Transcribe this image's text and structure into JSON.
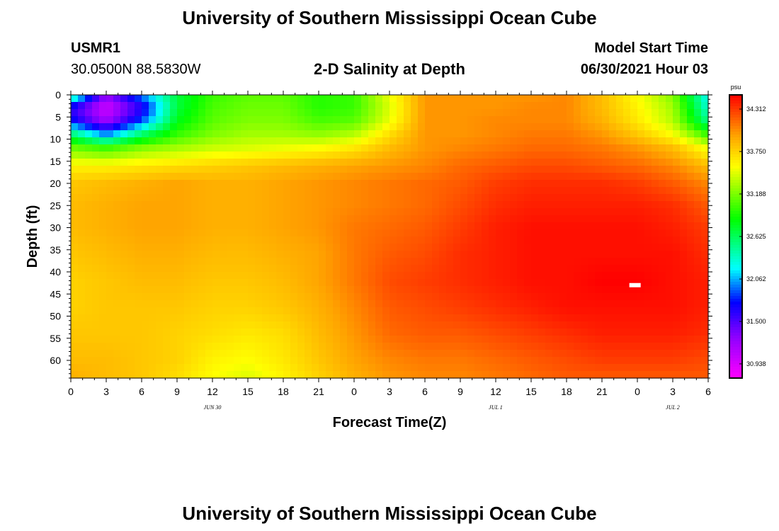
{
  "page": {
    "title_top": "University of Southern Mississippi Ocean Cube",
    "title_bottom": "University of Southern Mississippi Ocean Cube",
    "station_id": "USMR1",
    "station_coords": "30.0500N  88.5830W",
    "plot_title": "2-D Salinity at Depth",
    "model_start_label": "Model Start Time",
    "model_start_value": "06/30/2021 Hour 03"
  },
  "chart_data": {
    "type": "heatmap",
    "title": "2-D Salinity at Depth",
    "xlabel": "Forecast Time(Z)",
    "ylabel": "Depth (ft)",
    "x_tick_labels": [
      "0",
      "3",
      "6",
      "9",
      "12",
      "15",
      "18",
      "21",
      "0",
      "3",
      "6",
      "9",
      "12",
      "15",
      "18",
      "21",
      "0",
      "3",
      "6"
    ],
    "x_hours_range": [
      0,
      54
    ],
    "date_labels": [
      {
        "label": "JUN 30",
        "hour": 12
      },
      {
        "label": "JUL 1",
        "hour": 36
      },
      {
        "label": "JUL 2",
        "hour": 51
      }
    ],
    "y_ticks": [
      0,
      5,
      10,
      15,
      20,
      25,
      30,
      35,
      40,
      45,
      50,
      55,
      60
    ],
    "ylim": [
      0,
      64
    ],
    "units": "psu",
    "colorbar": {
      "label": "psu",
      "ticks": [
        30.938,
        31.5,
        32.062,
        32.625,
        33.188,
        33.75,
        34.312
      ],
      "range": [
        30.75,
        34.5
      ]
    },
    "salinity_grid_note": "rows = depth samples (ft), columns = forecast hour samples",
    "grid_hours": [
      0,
      3,
      6,
      9,
      12,
      15,
      18,
      21,
      24,
      27,
      30,
      33,
      36,
      39,
      42,
      45,
      48,
      51,
      54
    ],
    "grid_depths": [
      0,
      3,
      6,
      9,
      12,
      16,
      20,
      25,
      30,
      36,
      42,
      48,
      54,
      60,
      64
    ],
    "salinity": [
      [
        32.6,
        31.3,
        32.0,
        32.7,
        33.0,
        33.1,
        33.1,
        32.95,
        33.0,
        33.5,
        34.0,
        34.0,
        34.0,
        34.0,
        34.05,
        33.85,
        33.55,
        33.2,
        32.2
      ],
      [
        31.6,
        30.95,
        31.6,
        32.7,
        33.05,
        33.15,
        33.15,
        32.95,
        33.0,
        33.45,
        34.0,
        34.0,
        34.0,
        34.05,
        34.05,
        33.85,
        33.6,
        33.3,
        32.3
      ],
      [
        31.8,
        31.2,
        31.9,
        32.8,
        33.1,
        33.2,
        33.2,
        33.05,
        33.1,
        33.5,
        34.0,
        34.0,
        34.05,
        34.05,
        34.05,
        33.9,
        33.65,
        33.35,
        32.5
      ],
      [
        32.6,
        32.0,
        32.6,
        33.0,
        33.2,
        33.3,
        33.3,
        33.25,
        33.35,
        33.7,
        34.0,
        34.0,
        34.05,
        34.1,
        34.1,
        34.0,
        33.8,
        33.55,
        33.0
      ],
      [
        33.15,
        33.0,
        33.2,
        33.3,
        33.4,
        33.45,
        33.5,
        33.55,
        33.65,
        33.85,
        34.0,
        34.05,
        34.1,
        34.15,
        34.15,
        34.1,
        34.0,
        33.85,
        33.5
      ],
      [
        33.6,
        33.6,
        33.65,
        33.7,
        33.75,
        33.8,
        33.85,
        33.9,
        33.95,
        34.0,
        34.05,
        34.15,
        34.2,
        34.25,
        34.25,
        34.2,
        34.15,
        34.05,
        33.85
      ],
      [
        33.8,
        33.85,
        33.9,
        33.95,
        33.9,
        33.9,
        33.95,
        34.0,
        34.05,
        34.1,
        34.15,
        34.2,
        34.3,
        34.35,
        34.35,
        34.35,
        34.3,
        34.2,
        34.05
      ],
      [
        33.85,
        33.9,
        33.95,
        33.95,
        33.9,
        33.9,
        33.95,
        34.0,
        34.05,
        34.1,
        34.15,
        34.25,
        34.35,
        34.4,
        34.4,
        34.4,
        34.4,
        34.35,
        34.2
      ],
      [
        33.85,
        33.9,
        33.95,
        33.95,
        33.9,
        33.9,
        33.95,
        34.0,
        34.1,
        34.15,
        34.2,
        34.3,
        34.4,
        34.45,
        34.45,
        34.45,
        34.45,
        34.4,
        34.3
      ],
      [
        33.8,
        33.85,
        33.9,
        33.9,
        33.85,
        33.85,
        33.9,
        33.95,
        34.1,
        34.2,
        34.25,
        34.35,
        34.4,
        34.45,
        34.45,
        34.45,
        34.45,
        34.45,
        34.35
      ],
      [
        33.75,
        33.8,
        33.85,
        33.85,
        33.8,
        33.8,
        33.85,
        33.95,
        34.1,
        34.25,
        34.3,
        34.35,
        34.4,
        34.45,
        34.45,
        34.5,
        34.5,
        34.45,
        34.4
      ],
      [
        33.75,
        33.8,
        33.8,
        33.8,
        33.75,
        33.75,
        33.8,
        33.9,
        34.05,
        34.2,
        34.25,
        34.3,
        34.35,
        34.4,
        34.45,
        34.45,
        34.45,
        34.45,
        34.4
      ],
      [
        33.8,
        33.8,
        33.8,
        33.75,
        33.7,
        33.65,
        33.7,
        33.85,
        34.0,
        34.15,
        34.2,
        34.2,
        34.25,
        34.3,
        34.35,
        34.4,
        34.4,
        34.4,
        34.35
      ],
      [
        33.85,
        33.85,
        33.8,
        33.75,
        33.6,
        33.55,
        33.65,
        33.8,
        33.95,
        34.05,
        34.1,
        34.1,
        34.15,
        34.2,
        34.25,
        34.3,
        34.3,
        34.3,
        34.25
      ],
      [
        33.9,
        33.85,
        33.8,
        33.7,
        33.55,
        33.45,
        33.6,
        33.75,
        33.9,
        34.0,
        34.05,
        34.05,
        34.1,
        34.15,
        34.2,
        34.2,
        34.2,
        34.2,
        34.2
      ]
    ],
    "marker": {
      "hour": 47.8,
      "depth": 43
    }
  }
}
